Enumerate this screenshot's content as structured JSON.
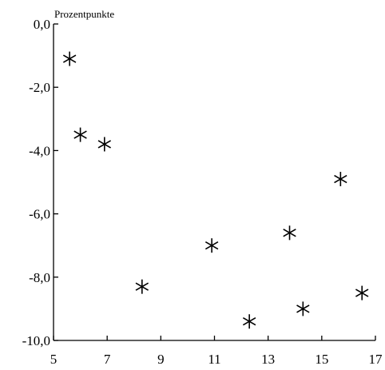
{
  "chart_data": {
    "type": "scatter",
    "title": "",
    "xlabel": "",
    "ylabel": "Prozentpunkte",
    "xlim": [
      5,
      17
    ],
    "ylim": [
      -10,
      0
    ],
    "x_ticks": [
      5,
      7,
      9,
      11,
      13,
      15,
      17
    ],
    "x_tick_labels": [
      "5",
      "7",
      "9",
      "11",
      "13",
      "15",
      "17"
    ],
    "y_ticks": [
      0,
      -2,
      -4,
      -6,
      -8,
      -10
    ],
    "y_tick_labels": [
      "0,0",
      "-2,0",
      "-4,0",
      "-6,0",
      "-8,0",
      "-10,0"
    ],
    "grid": false,
    "marker": "asterisk",
    "marker_color": "#000000",
    "series": [
      {
        "points": [
          {
            "x": 5.6,
            "y": -1.1
          },
          {
            "x": 6.0,
            "y": -3.5
          },
          {
            "x": 6.9,
            "y": -3.8
          },
          {
            "x": 8.3,
            "y": -8.3
          },
          {
            "x": 10.9,
            "y": -7.0
          },
          {
            "x": 12.3,
            "y": -9.4
          },
          {
            "x": 13.8,
            "y": -6.6
          },
          {
            "x": 14.3,
            "y": -9.0
          },
          {
            "x": 15.7,
            "y": -4.9
          },
          {
            "x": 16.5,
            "y": -8.5
          }
        ]
      }
    ]
  }
}
